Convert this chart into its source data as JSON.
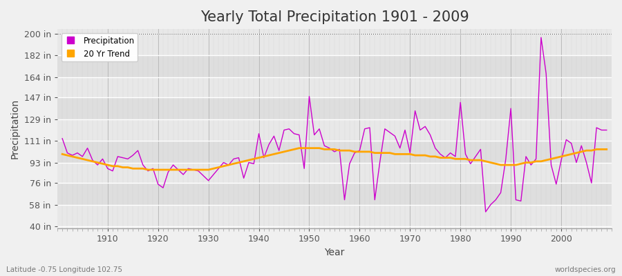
{
  "title": "Yearly Total Precipitation 1901 - 2009",
  "xlabel": "Year",
  "ylabel": "Precipitation",
  "subtitle_left": "Latitude -0.75 Longitude 102.75",
  "subtitle_right": "worldspecies.org",
  "yticks": [
    40,
    58,
    76,
    93,
    111,
    129,
    147,
    164,
    182,
    200
  ],
  "ytick_labels": [
    "40 in",
    "58 in",
    "76 in",
    "93 in",
    "111 in",
    "129 in",
    "147 in",
    "164 in",
    "182 in",
    "200 in"
  ],
  "ylim": [
    38,
    204
  ],
  "xlim": [
    1900,
    2010
  ],
  "years": [
    1901,
    1902,
    1903,
    1904,
    1905,
    1906,
    1907,
    1908,
    1909,
    1910,
    1911,
    1912,
    1913,
    1914,
    1915,
    1916,
    1917,
    1918,
    1919,
    1920,
    1921,
    1922,
    1923,
    1924,
    1925,
    1926,
    1927,
    1928,
    1929,
    1930,
    1931,
    1932,
    1933,
    1934,
    1935,
    1936,
    1937,
    1938,
    1939,
    1940,
    1941,
    1942,
    1943,
    1944,
    1945,
    1946,
    1947,
    1948,
    1949,
    1950,
    1951,
    1952,
    1953,
    1954,
    1955,
    1956,
    1957,
    1958,
    1959,
    1960,
    1961,
    1962,
    1963,
    1964,
    1965,
    1966,
    1967,
    1968,
    1969,
    1970,
    1971,
    1972,
    1973,
    1974,
    1975,
    1976,
    1977,
    1978,
    1979,
    1980,
    1981,
    1982,
    1983,
    1984,
    1985,
    1986,
    1987,
    1988,
    1989,
    1990,
    1991,
    1992,
    1993,
    1994,
    1995,
    1996,
    1997,
    1998,
    1999,
    2000,
    2001,
    2002,
    2003,
    2004,
    2005,
    2006,
    2007,
    2008,
    2009
  ],
  "precip": [
    113,
    101,
    99,
    101,
    98,
    105,
    95,
    91,
    96,
    88,
    86,
    98,
    97,
    96,
    99,
    103,
    91,
    86,
    88,
    75,
    72,
    85,
    91,
    87,
    83,
    88,
    87,
    86,
    82,
    78,
    83,
    88,
    93,
    91,
    96,
    97,
    80,
    93,
    92,
    117,
    97,
    108,
    115,
    103,
    120,
    121,
    117,
    116,
    88,
    148,
    116,
    121,
    107,
    105,
    102,
    104,
    62,
    92,
    101,
    103,
    121,
    122,
    62,
    93,
    121,
    118,
    115,
    105,
    120,
    101,
    136,
    120,
    123,
    116,
    105,
    100,
    97,
    101,
    98,
    143,
    100,
    92,
    98,
    104,
    52,
    58,
    62,
    68,
    96,
    138,
    62,
    61,
    98,
    91,
    96,
    197,
    167,
    91,
    75,
    95,
    112,
    109,
    93,
    107,
    93,
    76,
    122,
    120,
    120
  ],
  "trend": [
    100,
    99,
    98,
    97,
    96,
    95,
    94,
    93,
    92,
    91,
    90,
    90,
    89,
    89,
    88,
    88,
    88,
    87,
    87,
    87,
    87,
    87,
    87,
    87,
    87,
    87,
    87,
    87,
    87,
    87,
    88,
    89,
    90,
    91,
    92,
    93,
    94,
    95,
    96,
    97,
    98,
    99,
    100,
    101,
    102,
    103,
    104,
    105,
    105,
    105,
    105,
    105,
    104,
    104,
    104,
    103,
    103,
    103,
    102,
    102,
    102,
    102,
    101,
    101,
    101,
    101,
    100,
    100,
    100,
    100,
    99,
    99,
    99,
    98,
    98,
    97,
    97,
    97,
    96,
    96,
    96,
    95,
    95,
    95,
    94,
    93,
    92,
    91,
    91,
    91,
    91,
    92,
    93,
    93,
    94,
    94,
    95,
    96,
    97,
    98,
    99,
    100,
    101,
    102,
    103,
    103,
    104,
    104,
    104
  ],
  "precip_color": "#cc00cc",
  "trend_color": "#ffa500",
  "fig_bg_color": "#f0f0f0",
  "plot_bg_color": "#e8e8e8",
  "grid_color": "#ffffff",
  "minor_grid_color": "#d8d8d8",
  "legend_precip": "Precipitation",
  "legend_trend": "20 Yr Trend",
  "title_fontsize": 15,
  "axis_label_fontsize": 10,
  "tick_fontsize": 9
}
